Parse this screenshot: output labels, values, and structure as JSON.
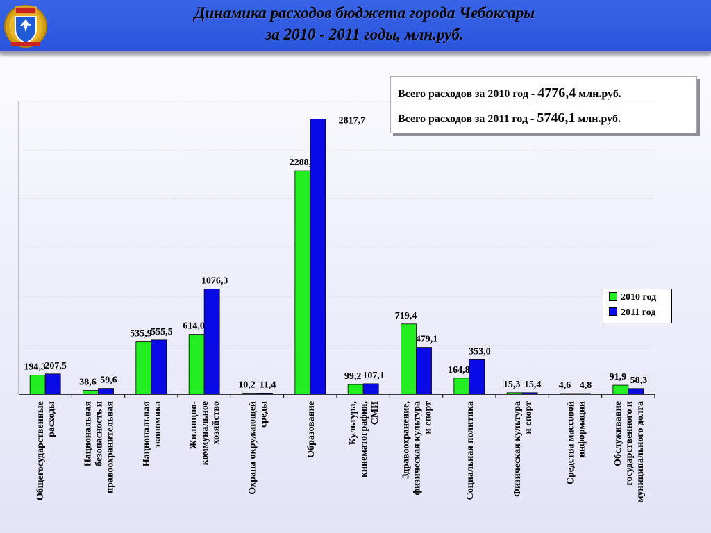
{
  "header": {
    "title_line1": "Динамика расходов бюджета города Чебоксары",
    "title_line2": "за 2010 - 2011 годы, млн.руб."
  },
  "summary": {
    "row1_prefix": "Всего расходов за 2010 год - ",
    "row1_value": "4776,4",
    "row1_suffix": " млн.руб.",
    "row2_prefix": "Всего расходов за 2011 год - ",
    "row2_value": "5746,1",
    "row2_suffix": " млн.руб."
  },
  "colors": {
    "series_2010": "#22ee22",
    "series_2011": "#0a0ae6",
    "header_bg": "#2f5ae2"
  },
  "chart_data": {
    "type": "bar",
    "title": "",
    "ylim": [
      0,
      3000
    ],
    "grid": true,
    "legend_position": "right",
    "categories": [
      [
        "Общегосударственные",
        "расходы"
      ],
      [
        "Национальная",
        "безопасность и",
        "правоохранительная"
      ],
      [
        "Национальная",
        "экономика"
      ],
      [
        "Жилищно-",
        "коммунальное",
        "хозяйство"
      ],
      [
        "Охрана окружающей",
        "среды"
      ],
      [
        "Образование"
      ],
      [
        "Культура,",
        "кинематография,",
        "СМИ"
      ],
      [
        "Здравоохранение,",
        "физическая культура",
        "и спорт"
      ],
      [
        "Социальная политика"
      ],
      [
        "Физическая культура",
        "и спорт"
      ],
      [
        "Средства массовой",
        "информации"
      ],
      [
        "Обслуживание",
        "государственного и",
        "муниципального долга"
      ]
    ],
    "series": [
      {
        "name": "2010 год",
        "values": [
          194.3,
          38.6,
          535.9,
          614.0,
          10.2,
          2288.2,
          99.2,
          719.4,
          164.8,
          15.3,
          4.6,
          91.9
        ],
        "labels": [
          "194,3",
          "38,6",
          "535,9",
          "614,0",
          "10,2",
          "2288,2",
          "99,2",
          "719,4",
          "164,8",
          "15,3",
          "4,6",
          "91,9"
        ]
      },
      {
        "name": "2011 год",
        "values": [
          207.5,
          59.6,
          555.5,
          1076.3,
          11.4,
          2817.7,
          107.1,
          479.1,
          353.0,
          15.4,
          4.8,
          58.3
        ],
        "labels": [
          "207,5",
          "59,6",
          "555,5",
          "1076,3",
          "11,4",
          "2817,7",
          "107,1",
          "479,1",
          "353,0",
          "15,4",
          "4,8",
          "58,3"
        ]
      }
    ]
  }
}
